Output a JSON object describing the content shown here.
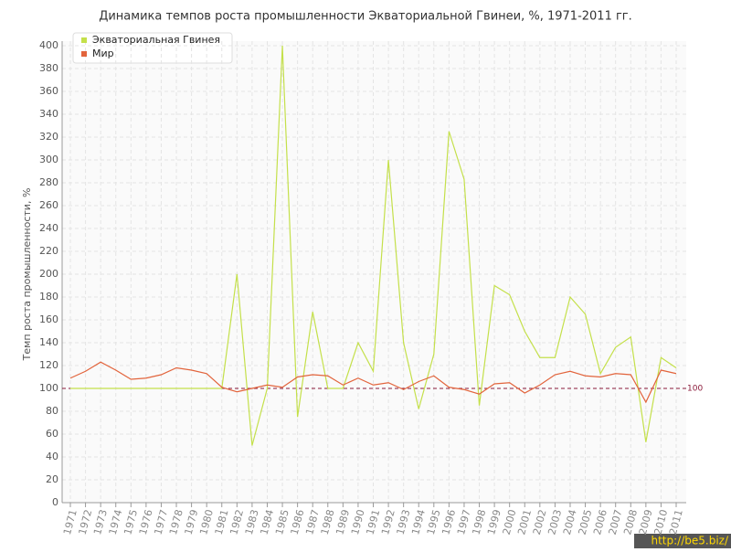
{
  "chart_data": {
    "type": "line",
    "title": "Динамика темпов роста промышленности Экваториальной Гвинеи, %, 1971-2011 гг.",
    "y_label": "Темп роста промышленности, %",
    "categories": [
      "1971",
      "1972",
      "1973",
      "1974",
      "1975",
      "1976",
      "1977",
      "1978",
      "1979",
      "1980",
      "1981",
      "1982",
      "1983",
      "1984",
      "1985",
      "1986",
      "1987",
      "1988",
      "1989",
      "1990",
      "1991",
      "1992",
      "1993",
      "1994",
      "1995",
      "1996",
      "1997",
      "1998",
      "1999",
      "2000",
      "2001",
      "2002",
      "2003",
      "2004",
      "2005",
      "2006",
      "2007",
      "2008",
      "2009",
      "2010",
      "2011"
    ],
    "series": [
      {
        "name": "Экваториальная Гвинея",
        "color": "#c4e04a",
        "values": [
          100,
          100,
          100,
          100,
          100,
          100,
          100,
          100,
          100,
          100,
          100,
          200,
          50,
          100,
          400,
          75,
          167,
          100,
          100,
          140,
          115,
          300,
          140,
          82,
          130,
          325,
          283,
          85,
          190,
          182,
          150,
          127,
          127,
          180,
          165,
          113,
          136,
          145,
          53,
          127,
          118
        ]
      },
      {
        "name": "Мир",
        "color": "#e2643c",
        "values": [
          109,
          115,
          123,
          116,
          108,
          109,
          112,
          118,
          116,
          113,
          101,
          97,
          100,
          103,
          101,
          110,
          112,
          111,
          103,
          109,
          103,
          105,
          99,
          106,
          111,
          101,
          99,
          95,
          104,
          105,
          96,
          103,
          112,
          115,
          111,
          110,
          113,
          112,
          88,
          116,
          113
        ]
      }
    ],
    "ylim": [
      0,
      400
    ],
    "yticks": [
      0,
      20,
      40,
      60,
      80,
      100,
      120,
      140,
      160,
      180,
      200,
      220,
      240,
      260,
      280,
      300,
      320,
      340,
      360,
      380,
      400
    ],
    "reference_line": 100,
    "grid": true,
    "legend": "top-left",
    "watermark": "http://be5.biz/"
  }
}
